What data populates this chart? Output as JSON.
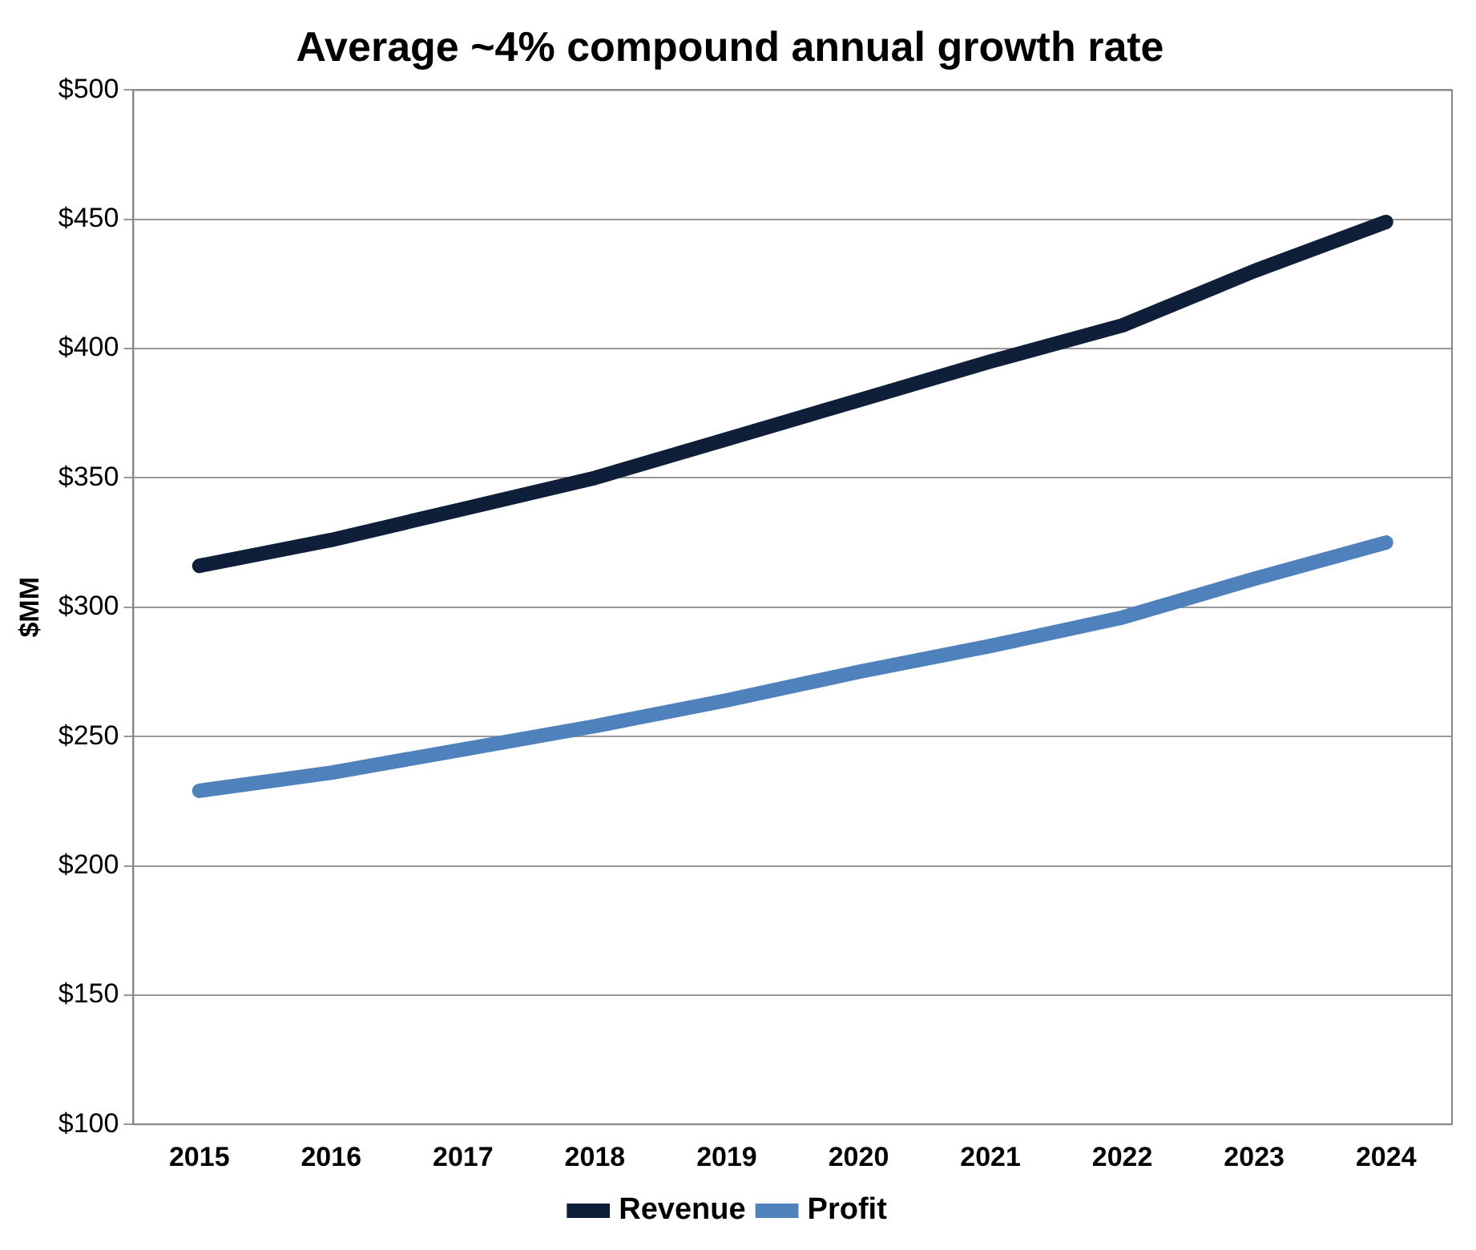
{
  "chart_data": {
    "type": "line",
    "title": "Average ~4% compound annual growth rate",
    "ylabel": "$MM",
    "categories": [
      "2015",
      "2016",
      "2017",
      "2018",
      "2019",
      "2020",
      "2021",
      "2022",
      "2023",
      "2024"
    ],
    "series": [
      {
        "name": "Revenue",
        "color": "#0f1f3a",
        "values": [
          316,
          326,
          338,
          350,
          365,
          380,
          395,
          409,
          430,
          449
        ]
      },
      {
        "name": "Profit",
        "color": "#4f81bd",
        "values": [
          229,
          236,
          245,
          254,
          264,
          275,
          285,
          296,
          311,
          325
        ]
      }
    ],
    "ylim": [
      100,
      500
    ],
    "yticks": [
      {
        "value": 100,
        "label": "$100"
      },
      {
        "value": 150,
        "label": "$150"
      },
      {
        "value": 200,
        "label": "$200"
      },
      {
        "value": 250,
        "label": "$250"
      },
      {
        "value": 300,
        "label": "$300"
      },
      {
        "value": 350,
        "label": "$350"
      },
      {
        "value": 400,
        "label": "$400"
      },
      {
        "value": 450,
        "label": "$450"
      },
      {
        "value": 500,
        "label": "$500"
      }
    ],
    "grid": "y",
    "legend": "bottom",
    "marker": "none",
    "line_style": "solid"
  }
}
